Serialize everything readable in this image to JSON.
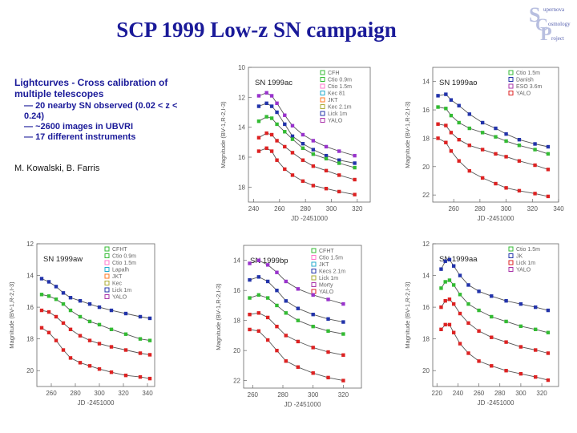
{
  "slide": {
    "title": "SCP 1999 Low-z SN campaign",
    "heading": "Lightcurves - Cross calibration of multiple telescopes",
    "bullets": [
      "20 nearby SN observed (0.02 < z < 0.24)",
      "~2600 images in UBVRI",
      "17 different instruments"
    ],
    "bullet_marker": "—",
    "authors": "M. Kowalski, B. Farris",
    "logo": {
      "letters": [
        "S",
        "C",
        "P"
      ],
      "words": [
        "upernova",
        "osmology",
        "roject"
      ]
    }
  },
  "colors": {
    "title": "#1a1a99",
    "curve": "#555555",
    "U": "#9933cc",
    "B": "#2233aa",
    "V": "#33bb33",
    "R": "#dd2222",
    "I": "#dd2222"
  },
  "chart_data": [
    {
      "type": "scatter",
      "label": "SN 1999ac",
      "xlabel": "JD -2451000",
      "ylabel": "Magnitude (BV-1,R-2,I-3)",
      "xlim": [
        236,
        330
      ],
      "ylim": [
        19,
        10
      ],
      "xticks": [
        240,
        260,
        280,
        300,
        320
      ],
      "yticks": [
        10,
        12,
        14,
        16,
        18
      ],
      "legend": [
        "CFH",
        "Ctio 0.9m",
        "Ctio 1.5m",
        "Kec 81",
        "JKT",
        "Kec 2.1m",
        "Lick 1m",
        "YALO"
      ],
      "legend_marker_colors": [
        "#33bb33",
        "#33bb33",
        "#ff77cc",
        "#22aacc",
        "#ff7722",
        "#aaaa33",
        "#2233aa",
        "#aa33aa"
      ],
      "series": [
        {
          "name": "U",
          "x": [
            244,
            250,
            254,
            258,
            264,
            270,
            278,
            286,
            296,
            306,
            318
          ],
          "y": [
            11.9,
            11.7,
            11.9,
            12.4,
            13.2,
            13.9,
            14.5,
            14.9,
            15.3,
            15.6,
            15.9
          ]
        },
        {
          "name": "B",
          "x": [
            244,
            250,
            254,
            258,
            264,
            270,
            278,
            286,
            296,
            306,
            318
          ],
          "y": [
            12.6,
            12.4,
            12.6,
            13.0,
            13.8,
            14.6,
            15.1,
            15.5,
            15.9,
            16.2,
            16.4
          ]
        },
        {
          "name": "V",
          "x": [
            244,
            250,
            254,
            258,
            264,
            270,
            278,
            286,
            296,
            306,
            318
          ],
          "y": [
            13.6,
            13.3,
            13.4,
            13.8,
            14.3,
            14.8,
            15.4,
            15.8,
            16.1,
            16.4,
            16.7
          ]
        },
        {
          "name": "R",
          "x": [
            244,
            250,
            254,
            258,
            264,
            270,
            278,
            286,
            296,
            306,
            318
          ],
          "y": [
            14.7,
            14.4,
            14.5,
            14.9,
            15.3,
            15.7,
            16.2,
            16.6,
            16.9,
            17.2,
            17.5
          ]
        },
        {
          "name": "I",
          "x": [
            244,
            250,
            254,
            258,
            264,
            270,
            278,
            286,
            296,
            306,
            318
          ],
          "y": [
            15.6,
            15.4,
            15.6,
            16.2,
            16.8,
            17.2,
            17.6,
            17.9,
            18.1,
            18.3,
            18.5
          ]
        }
      ]
    },
    {
      "type": "scatter",
      "label": "SN 1999ao",
      "xlabel": "JD -2451000",
      "ylabel": "Magnitude (BV-1,R-2,I-3)",
      "xlim": [
        244,
        340
      ],
      "ylim": [
        22.5,
        13
      ],
      "xticks": [
        260,
        280,
        300,
        320,
        340
      ],
      "yticks": [
        14,
        16,
        18,
        20,
        22
      ],
      "legend": [
        "Ctio 1.5m",
        "Danish",
        "ESO 3.6m",
        "YALO"
      ],
      "legend_marker_colors": [
        "#33bb33",
        "#2233aa",
        "#aa33aa",
        "#dd2222"
      ],
      "series": [
        {
          "name": "B",
          "x": [
            248,
            254,
            258,
            264,
            272,
            282,
            292,
            300,
            310,
            322,
            332
          ],
          "y": [
            15.0,
            14.9,
            15.3,
            15.7,
            16.3,
            16.9,
            17.3,
            17.7,
            18.1,
            18.4,
            18.6
          ]
        },
        {
          "name": "V",
          "x": [
            248,
            254,
            258,
            264,
            272,
            282,
            292,
            300,
            310,
            322,
            332
          ],
          "y": [
            15.8,
            15.9,
            16.4,
            16.9,
            17.3,
            17.6,
            17.9,
            18.2,
            18.5,
            18.8,
            19.1
          ]
        },
        {
          "name": "R",
          "x": [
            248,
            254,
            258,
            264,
            272,
            282,
            292,
            300,
            310,
            322,
            332
          ],
          "y": [
            17.0,
            17.1,
            17.6,
            18.1,
            18.5,
            18.8,
            19.1,
            19.3,
            19.6,
            19.9,
            20.2
          ]
        },
        {
          "name": "I",
          "x": [
            248,
            254,
            258,
            264,
            272,
            282,
            292,
            300,
            310,
            322,
            332
          ],
          "y": [
            18.0,
            18.3,
            18.9,
            19.6,
            20.3,
            20.8,
            21.2,
            21.5,
            21.7,
            21.9,
            22.1
          ]
        }
      ]
    },
    {
      "type": "scatter",
      "label": "SN 1999aw",
      "xlabel": "JD -2451000",
      "ylabel": "Magnitude (BV-1,R-2,I-3)",
      "xlim": [
        248,
        346
      ],
      "ylim": [
        21,
        12
      ],
      "xticks": [
        260,
        280,
        300,
        320,
        340
      ],
      "yticks": [
        12,
        14,
        16,
        18,
        20
      ],
      "legend": [
        "CFHT",
        "Ctio 0.9m",
        "Ctio 1.5m",
        "Lapalh",
        "JKT",
        "Kec",
        "Lick 1m",
        "YALO"
      ],
      "legend_marker_colors": [
        "#33bb33",
        "#33bb33",
        "#ff77cc",
        "#22aacc",
        "#ff7722",
        "#aaaa33",
        "#2233aa",
        "#aa33aa"
      ],
      "series": [
        {
          "name": "B",
          "x": [
            252,
            258,
            264,
            270,
            276,
            284,
            292,
            300,
            310,
            322,
            334,
            342
          ],
          "y": [
            14.2,
            14.4,
            14.7,
            15.1,
            15.4,
            15.6,
            15.8,
            16.0,
            16.2,
            16.4,
            16.6,
            16.7
          ]
        },
        {
          "name": "V",
          "x": [
            252,
            258,
            264,
            270,
            276,
            284,
            292,
            300,
            310,
            322,
            334,
            342
          ],
          "y": [
            15.2,
            15.3,
            15.5,
            15.8,
            16.2,
            16.6,
            16.9,
            17.1,
            17.4,
            17.7,
            18.0,
            18.1
          ]
        },
        {
          "name": "R",
          "x": [
            252,
            258,
            264,
            270,
            276,
            284,
            292,
            300,
            310,
            322,
            334,
            342
          ],
          "y": [
            16.2,
            16.3,
            16.6,
            17.0,
            17.4,
            17.8,
            18.1,
            18.3,
            18.5,
            18.7,
            18.9,
            19.0
          ]
        },
        {
          "name": "I",
          "x": [
            252,
            258,
            264,
            270,
            276,
            284,
            292,
            300,
            310,
            322,
            334,
            342
          ],
          "y": [
            17.3,
            17.6,
            18.1,
            18.7,
            19.2,
            19.5,
            19.7,
            19.9,
            20.1,
            20.3,
            20.4,
            20.5
          ]
        }
      ]
    },
    {
      "type": "scatter",
      "label": "SN 1999bp",
      "xlabel": "JD -2451000",
      "ylabel": "Magnitude (BV-1,R-2,I-3)",
      "xlim": [
        254,
        332
      ],
      "ylim": [
        22.5,
        13
      ],
      "xticks": [
        260,
        280,
        300,
        320
      ],
      "yticks": [
        14,
        16,
        18,
        20,
        22
      ],
      "legend": [
        "CFHT",
        "Ctio 1.5m",
        "JKT",
        "Kecs 2.1m",
        "Lick 1m",
        "Morty",
        "YALO"
      ],
      "legend_marker_colors": [
        "#33bb33",
        "#ff77cc",
        "#22aacc",
        "#2233aa",
        "#aaaa33",
        "#aa33aa",
        "#dd2222"
      ],
      "series": [
        {
          "name": "U",
          "x": [
            258,
            264,
            270,
            276,
            282,
            290,
            300,
            310,
            320
          ],
          "y": [
            14.2,
            14.0,
            14.3,
            14.8,
            15.4,
            15.9,
            16.3,
            16.6,
            16.9
          ]
        },
        {
          "name": "B",
          "x": [
            258,
            264,
            270,
            276,
            282,
            290,
            300,
            310,
            320
          ],
          "y": [
            15.3,
            15.1,
            15.4,
            16.0,
            16.7,
            17.2,
            17.6,
            17.9,
            18.1
          ]
        },
        {
          "name": "V",
          "x": [
            258,
            264,
            270,
            276,
            282,
            290,
            300,
            310,
            320
          ],
          "y": [
            16.5,
            16.3,
            16.5,
            17.0,
            17.5,
            18.0,
            18.4,
            18.7,
            18.9
          ]
        },
        {
          "name": "R",
          "x": [
            258,
            264,
            270,
            276,
            282,
            290,
            300,
            310,
            320
          ],
          "y": [
            17.6,
            17.5,
            17.8,
            18.4,
            19.0,
            19.4,
            19.8,
            20.1,
            20.3
          ]
        },
        {
          "name": "I",
          "x": [
            258,
            264,
            270,
            276,
            282,
            290,
            300,
            310,
            320
          ],
          "y": [
            18.6,
            18.7,
            19.3,
            20.0,
            20.7,
            21.1,
            21.5,
            21.8,
            22.0
          ]
        }
      ]
    },
    {
      "type": "scatter",
      "label": "SN 1999aa",
      "xlabel": "JD -2451000",
      "ylabel": "Magnitude (BV-1,R-2,I-3)",
      "xlim": [
        216,
        336
      ],
      "ylim": [
        21,
        12
      ],
      "xticks": [
        220,
        240,
        260,
        280,
        300,
        320
      ],
      "yticks": [
        12,
        14,
        16,
        18,
        20
      ],
      "legend": [
        "Ctio 1.5m",
        "JK",
        "Lick 1m",
        "YALO"
      ],
      "legend_marker_colors": [
        "#33bb33",
        "#2233aa",
        "#dd2222",
        "#aa33aa"
      ],
      "series": [
        {
          "name": "B",
          "x": [
            224,
            228,
            232,
            236,
            242,
            250,
            260,
            272,
            286,
            300,
            314,
            326
          ],
          "y": [
            13.6,
            13.1,
            13.0,
            13.4,
            14.0,
            14.6,
            15.0,
            15.3,
            15.6,
            15.8,
            16.0,
            16.2
          ]
        },
        {
          "name": "V",
          "x": [
            224,
            228,
            232,
            236,
            242,
            250,
            260,
            272,
            286,
            300,
            314,
            326
          ],
          "y": [
            14.8,
            14.4,
            14.3,
            14.6,
            15.2,
            15.8,
            16.2,
            16.6,
            16.9,
            17.2,
            17.4,
            17.6
          ]
        },
        {
          "name": "R",
          "x": [
            224,
            228,
            232,
            236,
            242,
            250,
            260,
            272,
            286,
            300,
            314,
            326
          ],
          "y": [
            16.0,
            15.6,
            15.5,
            15.8,
            16.4,
            17.0,
            17.5,
            17.9,
            18.2,
            18.5,
            18.7,
            18.9
          ]
        },
        {
          "name": "I",
          "x": [
            224,
            228,
            232,
            236,
            242,
            250,
            260,
            272,
            286,
            300,
            314,
            326
          ],
          "y": [
            17.4,
            17.1,
            17.1,
            17.6,
            18.3,
            18.9,
            19.4,
            19.7,
            20.0,
            20.2,
            20.4,
            20.6
          ]
        }
      ]
    }
  ]
}
